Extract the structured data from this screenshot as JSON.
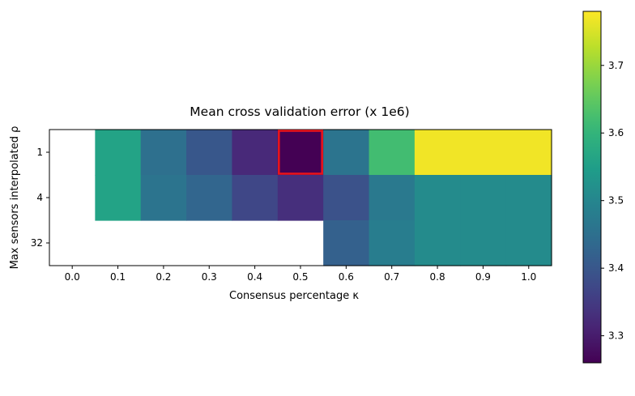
{
  "chart_data": {
    "type": "heatmap",
    "title": "Mean cross validation error (x 1e6)",
    "xlabel": "Consensus percentage κ",
    "ylabel": "Max sensors interpolated ρ",
    "x_ticks": [
      "0.0",
      "0.1",
      "0.2",
      "0.3",
      "0.4",
      "0.5",
      "0.6",
      "0.7",
      "0.8",
      "0.9",
      "1.0"
    ],
    "y_ticks": [
      "1",
      "4",
      "32"
    ],
    "values": [
      [
        null,
        3.56,
        3.45,
        3.4,
        3.32,
        3.26,
        3.46,
        3.62,
        3.77,
        3.77,
        3.77
      ],
      [
        null,
        3.56,
        3.46,
        3.43,
        3.37,
        3.33,
        3.39,
        3.47,
        3.51,
        3.51,
        3.51
      ],
      [
        null,
        null,
        null,
        null,
        null,
        null,
        3.42,
        3.48,
        3.51,
        3.51,
        3.51
      ]
    ],
    "highlight": {
      "row": 0,
      "col": 5,
      "color": "#e8141b"
    },
    "colorbar": {
      "min": 3.26,
      "max": 3.78,
      "ticks": [
        "3.3",
        "3.4",
        "3.5",
        "3.6",
        "3.7"
      ],
      "colormap": "viridis"
    },
    "grid": false
  }
}
